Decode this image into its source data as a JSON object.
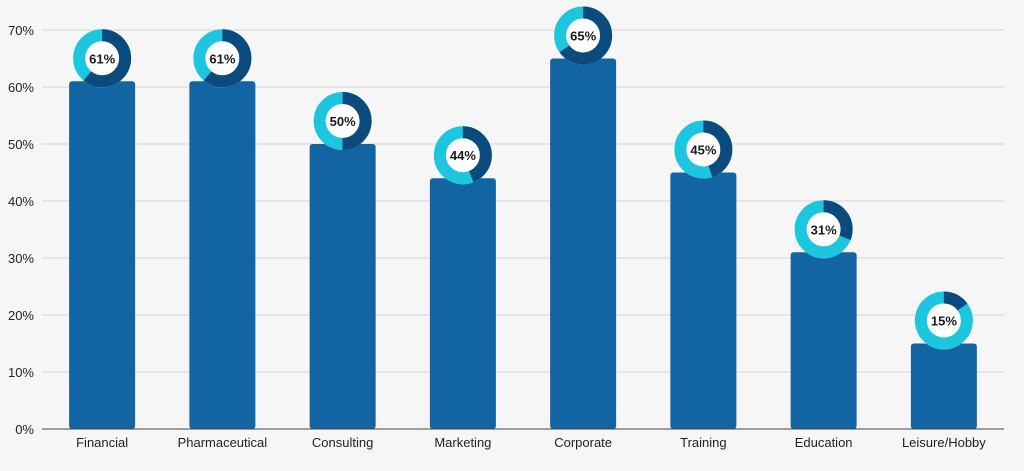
{
  "chart_data": {
    "type": "bar",
    "categories": [
      "Financial",
      "Pharmaceutical",
      "Consulting",
      "Marketing",
      "Corporate",
      "Training",
      "Education",
      "Leisure/Hobby"
    ],
    "values": [
      61,
      61,
      50,
      44,
      65,
      45,
      31,
      15
    ],
    "data_labels": [
      "61%",
      "61%",
      "50%",
      "44%",
      "65%",
      "45%",
      "31%",
      "15%"
    ],
    "ylim": [
      0,
      70
    ],
    "yticks": [
      0,
      10,
      20,
      30,
      40,
      50,
      60,
      70
    ],
    "ytick_labels": [
      "0%",
      "10%",
      "20%",
      "30%",
      "40%",
      "50%",
      "60%",
      "70%"
    ],
    "grid": true,
    "legend": "none",
    "title": "",
    "xlabel": "",
    "ylabel": "",
    "colors": {
      "bar": "#1264a3",
      "donut_filled": "#0b4a7c",
      "donut_remaining": "#1cc6de",
      "donut_center": "#ffffff",
      "grid": "#d4d4d4",
      "axis": "#444444"
    }
  }
}
